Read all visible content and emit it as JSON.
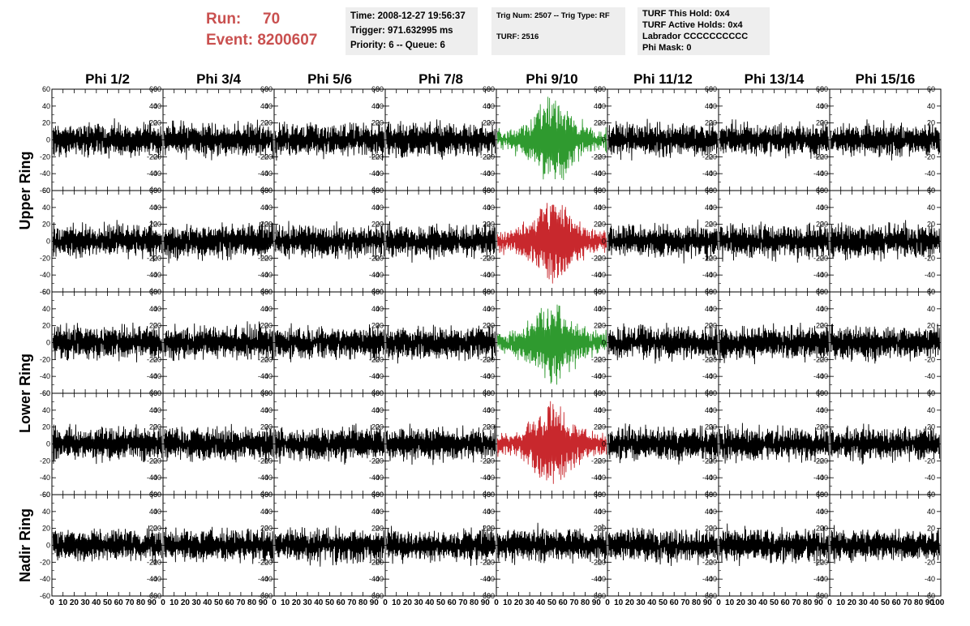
{
  "header": {
    "run_label": "Run:",
    "run_value": "70",
    "event_label": "Event:",
    "event_value": "8200607",
    "time_line": "Time: 2008-12-27 19:56:37",
    "trigger_line": "Trigger: 971.632995 ms",
    "priority_line": "Priority: 6 -- Queue: 6",
    "trig_line": "Trig Num: 2507 -- Trig Type: RF",
    "turf_line": "TURF: 2516",
    "turf_hold_line": "TURF This Hold: 0x4",
    "turf_active_line": "TURF Active Holds: 0x4",
    "labrador_line": "Labrador CCCCCCCCCC",
    "phi_mask_line": "Phi Mask: 0"
  },
  "colors": {
    "trace_default": "#000000",
    "trace_green": "#2f9a2f",
    "trace_red": "#c8282d",
    "info_bg": "#eeeeee",
    "run_text": "#c9504f"
  },
  "chart_data": {
    "type": "line",
    "columns": [
      "Phi 1/2",
      "Phi 3/4",
      "Phi 5/6",
      "Phi 7/8",
      "Phi 9/10",
      "Phi 11/12",
      "Phi 13/14",
      "Phi 15/16"
    ],
    "rows": [
      "Upper Ring",
      "",
      "Lower Ring",
      "",
      "Nadir Ring"
    ],
    "ylim": [
      -60,
      60
    ],
    "yticks": [
      -60,
      -40,
      -20,
      0,
      20,
      40,
      60
    ],
    "xlim": [
      0,
      100
    ],
    "xticks": [
      0,
      10,
      20,
      30,
      40,
      50,
      60,
      70,
      80,
      90
    ],
    "xtick_labels": [
      "0",
      "10",
      "20",
      "30",
      "40",
      "50",
      "60",
      "70",
      "80",
      "90"
    ],
    "xtick_last": "100",
    "noise_amplitude": 15,
    "signal_amplitude": 30,
    "signal_center": 50,
    "highlighted": [
      {
        "column": "Phi 9/10",
        "row": 0,
        "color": "green"
      },
      {
        "column": "Phi 9/10",
        "row": 1,
        "color": "red"
      },
      {
        "column": "Phi 9/10",
        "row": 2,
        "color": "green"
      },
      {
        "column": "Phi 9/10",
        "row": 3,
        "color": "red"
      }
    ]
  }
}
